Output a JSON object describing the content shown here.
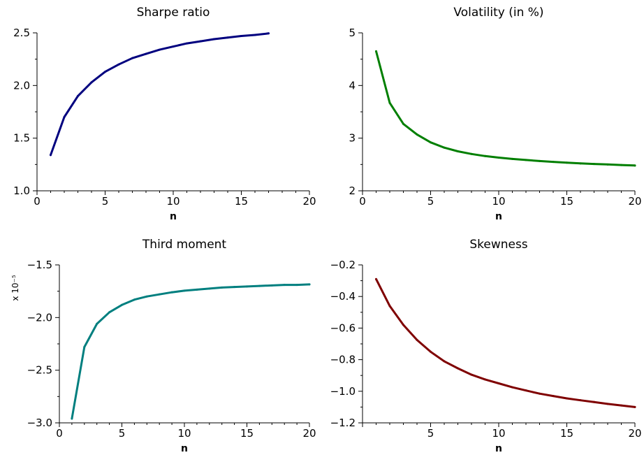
{
  "chart_data": [
    {
      "type": "line",
      "title": "Sharpe ratio",
      "xlabel": "n",
      "ylabel": "",
      "xlim": [
        0,
        20
      ],
      "ylim": [
        1.0,
        2.5
      ],
      "xticks": [
        0,
        5,
        10,
        15,
        20
      ],
      "yticks": [
        1.0,
        1.5,
        2.0,
        2.5
      ],
      "xtick_labels": [
        "0",
        "5",
        "10",
        "15",
        "20"
      ],
      "ytick_labels": [
        "1.0",
        "1.5",
        "2.0",
        "2.5"
      ],
      "multiplier": "",
      "color": "#00007f",
      "x": [
        1,
        2,
        3,
        4,
        5,
        6,
        7,
        8,
        9,
        10,
        11,
        12,
        13,
        14,
        15,
        16,
        17
      ],
      "y": [
        1.34,
        1.7,
        1.9,
        2.03,
        2.13,
        2.2,
        2.26,
        2.3,
        2.34,
        2.37,
        2.4,
        2.42,
        2.44,
        2.455,
        2.47,
        2.48,
        2.495
      ]
    },
    {
      "type": "line",
      "title": "Volatility (in %)",
      "xlabel": "n",
      "ylabel": "",
      "xlim": [
        0,
        20
      ],
      "ylim": [
        2,
        5
      ],
      "xticks": [
        0,
        5,
        10,
        15,
        20
      ],
      "yticks": [
        2,
        3,
        4,
        5
      ],
      "xtick_labels": [
        "0",
        "5",
        "10",
        "15",
        "20"
      ],
      "ytick_labels": [
        "2",
        "3",
        "4",
        "5"
      ],
      "multiplier": "",
      "color": "#007f00",
      "x": [
        1,
        2,
        3,
        4,
        5,
        6,
        7,
        8,
        9,
        10,
        11,
        12,
        13,
        14,
        15,
        16,
        17,
        18,
        19,
        20
      ],
      "y": [
        4.65,
        3.67,
        3.27,
        3.07,
        2.92,
        2.82,
        2.75,
        2.7,
        2.66,
        2.63,
        2.605,
        2.585,
        2.565,
        2.55,
        2.535,
        2.52,
        2.51,
        2.5,
        2.49,
        2.48
      ]
    },
    {
      "type": "line",
      "title": "Third moment",
      "xlabel": "n",
      "ylabel": "",
      "xlim": [
        0,
        20
      ],
      "ylim": [
        -3.0,
        -1.5
      ],
      "xticks": [
        0,
        5,
        10,
        15,
        20
      ],
      "yticks": [
        -3.0,
        -2.5,
        -2.0,
        -1.5
      ],
      "xtick_labels": [
        "0",
        "5",
        "10",
        "15",
        "20"
      ],
      "ytick_labels": [
        "−3.0",
        "−2.5",
        "−2.0",
        "−1.5"
      ],
      "multiplier": "x 10⁻⁵",
      "color": "#007f7f",
      "x": [
        1,
        2,
        3,
        4,
        5,
        6,
        7,
        8,
        9,
        10,
        11,
        12,
        13,
        14,
        15,
        16,
        17,
        18,
        19,
        20
      ],
      "y": [
        -2.96,
        -2.28,
        -2.06,
        -1.95,
        -1.88,
        -1.83,
        -1.8,
        -1.78,
        -1.76,
        -1.745,
        -1.735,
        -1.725,
        -1.715,
        -1.71,
        -1.705,
        -1.7,
        -1.695,
        -1.69,
        -1.69,
        -1.685
      ]
    },
    {
      "type": "line",
      "title": "Skewness",
      "xlabel": "n",
      "ylabel": "",
      "xlim": [
        0,
        20
      ],
      "ylim": [
        -1.2,
        -0.2
      ],
      "xticks": [
        5,
        10,
        15,
        20
      ],
      "yticks": [
        -1.2,
        -1.0,
        -0.8,
        -0.6,
        -0.4,
        -0.2
      ],
      "xtick_labels": [
        "5",
        "10",
        "15",
        "20"
      ],
      "ytick_labels": [
        "−1.2",
        "−1.0",
        "−0.8",
        "−0.6",
        "−0.4",
        "−0.2"
      ],
      "multiplier": "",
      "color": "#7f0000",
      "x": [
        1,
        2,
        3,
        4,
        5,
        6,
        7,
        8,
        9,
        10,
        11,
        12,
        13,
        14,
        15,
        16,
        17,
        18,
        19,
        20
      ],
      "y": [
        -0.29,
        -0.46,
        -0.58,
        -0.675,
        -0.75,
        -0.81,
        -0.855,
        -0.895,
        -0.925,
        -0.95,
        -0.975,
        -0.995,
        -1.015,
        -1.03,
        -1.045,
        -1.057,
        -1.068,
        -1.08,
        -1.09,
        -1.1
      ]
    }
  ]
}
